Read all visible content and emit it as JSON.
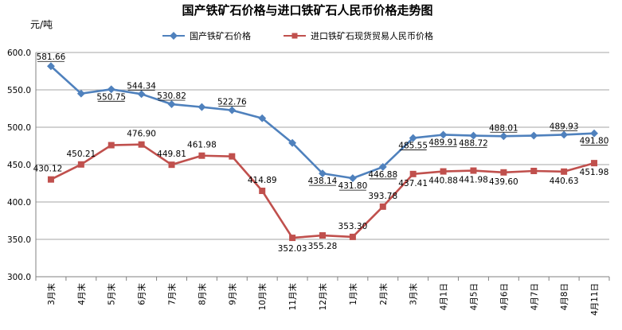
{
  "chart_data": {
    "type": "line",
    "title": "国产铁矿石价格与进口铁矿石人民币价格走势图",
    "ylabel": "元/吨",
    "ylim": [
      300.0,
      600.0
    ],
    "yticks": [
      "600.0",
      "550.0",
      "500.0",
      "450.0",
      "400.0",
      "350.0",
      "300.0"
    ],
    "grid": true,
    "legend_position": "top",
    "categories": [
      "3月末",
      "4月末",
      "5月末",
      "6月末",
      "7月末",
      "8月末",
      "9月末",
      "10月末",
      "11月末",
      "12月末",
      "1月末",
      "2月末",
      "3月末",
      "4月1日",
      "4月5日",
      "4月6日",
      "4月7日",
      "4月8日",
      "4月11日"
    ],
    "series": [
      {
        "name": "国产铁矿石价格",
        "color": "#4F81BD",
        "marker": "diamond",
        "values": [
          581.66,
          545.0,
          550.75,
          544.34,
          530.82,
          527.0,
          522.76,
          512.0,
          479.0,
          438.14,
          431.8,
          446.88,
          485.55,
          489.91,
          488.72,
          488.01,
          488.8,
          489.93,
          491.8
        ],
        "labels": [
          "581.66",
          null,
          "550.75",
          "544.34",
          "530.82",
          null,
          "522.76",
          null,
          null,
          "438.14",
          "431.80",
          "446.88",
          "485.55",
          "489.91",
          "488.72",
          "488.01",
          null,
          "489.93",
          "491.80"
        ]
      },
      {
        "name": "进口铁矿石现货贸易人民币价格",
        "color": "#C0504D",
        "marker": "square",
        "values": [
          430.12,
          450.21,
          476.0,
          476.9,
          449.81,
          461.98,
          461.0,
          414.89,
          352.03,
          355.28,
          353.3,
          393.78,
          437.41,
          440.88,
          441.98,
          439.6,
          441.5,
          440.63,
          451.98
        ],
        "labels": [
          "430.12",
          "450.21",
          null,
          "476.90",
          "449.81",
          "461.98",
          null,
          "414.89",
          "352.03",
          "355.28",
          "353.30",
          "393.78",
          "437.41",
          "440.88",
          "441.98",
          "439.60",
          null,
          "440.63",
          "451.98"
        ]
      }
    ]
  }
}
